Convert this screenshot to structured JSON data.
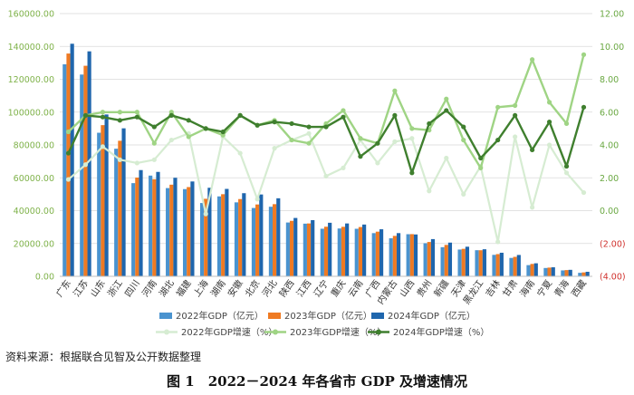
{
  "source_note": "资料来源：根据联合见智及公开数据整理",
  "figure_caption": "图 1　2022－2024 年各省市 GDP 及增速情况",
  "colors": {
    "bar2022": "#4a93cf",
    "bar2023": "#ef7a22",
    "bar2024": "#1f66ad",
    "line2022": "#d6ecd2",
    "line2023": "#9fd484",
    "line2024": "#3f7f2e",
    "axis_left": "#7fb24a",
    "axis_right": "#6aa842",
    "neg": "#d0312d"
  },
  "chart_data": {
    "type": "bar",
    "categories": [
      "广东",
      "江苏",
      "山东",
      "浙江",
      "四川",
      "河南",
      "湖北",
      "福建",
      "上海",
      "湖南",
      "安徽",
      "北京",
      "河北",
      "陕西",
      "江西",
      "辽宁",
      "重庆",
      "云南",
      "广西",
      "内蒙古",
      "山西",
      "贵州",
      "新疆",
      "天津",
      "黑龙江",
      "吉林",
      "甘肃",
      "海南",
      "宁夏",
      "青海",
      "西藏"
    ],
    "y_left": {
      "min": 0,
      "max": 160000,
      "step": 20000,
      "tick_labels": [
        "0.00",
        "20000.00",
        "40000.00",
        "60000.00",
        "80000.00",
        "100000.00",
        "120000.00",
        "140000.00",
        "160000.00"
      ]
    },
    "y_right": {
      "min": -4,
      "max": 12,
      "step": 2,
      "tick_labels": [
        "(4.00)",
        "(2.00)",
        "0.00",
        "2.00",
        "4.00",
        "6.00",
        "8.00",
        "10.00",
        "12.00"
      ]
    },
    "series": [
      {
        "name": "2022年GDP（亿元）",
        "type": "bar",
        "axis": "left",
        "values": [
          129119,
          122876,
          87435,
          77715,
          56750,
          61345,
          53735,
          53110,
          44653,
          48670,
          45045,
          41611,
          42370,
          32773,
          32075,
          28975,
          29129,
          28954,
          26301,
          23159,
          25643,
          20165,
          17741,
          16311,
          15901,
          13070,
          11202,
          6818,
          5070,
          3610,
          2133
        ]
      },
      {
        "name": "2023年GDP（亿元）",
        "type": "bar",
        "axis": "left",
        "values": [
          135673,
          128222,
          92069,
          82553,
          60133,
          59132,
          55804,
          54355,
          47219,
          50013,
          47051,
          43761,
          43944,
          33786,
          32200,
          30209,
          30146,
          30021,
          27202,
          24627,
          25698,
          20913,
          19126,
          16737,
          15884,
          13531,
          11864,
          7551,
          5315,
          3799,
          2393
        ]
      },
      {
        "name": "2024年GDP（亿元）",
        "type": "bar",
        "axis": "left",
        "values": [
          141634,
          137008,
          98566,
          90131,
          64697,
          63590,
          60013,
          57761,
          53926,
          53231,
          50625,
          49843,
          47527,
          35538,
          34202,
          32613,
          32193,
          31534,
          28649,
          26314,
          25494,
          22667,
          20534,
          18024,
          16477,
          14361,
          13003,
          7935,
          5503,
          3951,
          2765
        ]
      },
      {
        "name": "2022年GDP增速（%）",
        "type": "line",
        "axis": "right",
        "values": [
          1.9,
          2.8,
          3.9,
          3.1,
          2.9,
          3.1,
          4.3,
          4.7,
          -0.2,
          4.5,
          3.5,
          0.7,
          3.8,
          4.3,
          4.7,
          2.1,
          2.6,
          4.3,
          2.9,
          4.2,
          4.4,
          1.2,
          3.2,
          1.0,
          2.7,
          -1.9,
          4.5,
          0.2,
          4.0,
          2.3,
          1.1
        ]
      },
      {
        "name": "2023年GDP增速（%）",
        "type": "line",
        "axis": "right",
        "values": [
          4.8,
          5.8,
          6.0,
          6.0,
          6.0,
          4.1,
          6.0,
          4.5,
          5.0,
          4.6,
          5.8,
          5.2,
          5.5,
          4.3,
          4.1,
          5.3,
          6.1,
          4.4,
          4.1,
          7.3,
          5.0,
          4.9,
          6.8,
          4.3,
          2.6,
          6.3,
          6.4,
          9.2,
          6.6,
          5.3,
          9.5
        ]
      },
      {
        "name": "2024年GDP增速（%）",
        "type": "line",
        "axis": "right",
        "values": [
          3.5,
          5.8,
          5.7,
          5.5,
          5.7,
          5.1,
          5.8,
          5.5,
          5.0,
          4.8,
          5.8,
          5.2,
          5.4,
          5.3,
          5.1,
          5.1,
          5.7,
          3.3,
          4.1,
          5.8,
          2.3,
          5.3,
          6.1,
          5.1,
          3.2,
          4.3,
          5.8,
          3.7,
          5.4,
          2.7,
          6.3
        ]
      }
    ],
    "legend_position": "bottom",
    "grid": true
  }
}
